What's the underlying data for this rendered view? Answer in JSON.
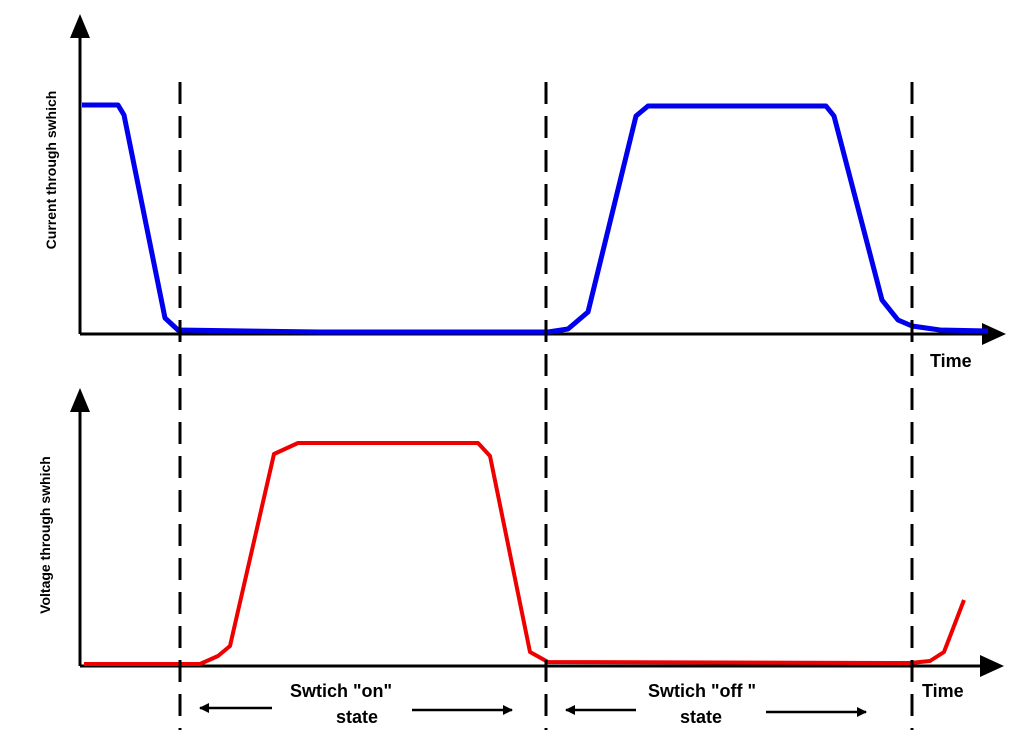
{
  "top_panel": {
    "y_axis_label": "Current through swhich",
    "x_axis_label": "Time",
    "trace_color": "#0000ee",
    "trace_levels": {
      "start": "high",
      "after_first_boundary": "low",
      "between_2nd_and_3rd_boundary": "high"
    }
  },
  "bottom_panel": {
    "y_axis_label": "Voltage through swhich",
    "x_axis_label": "Time",
    "trace_color": "#ee0000",
    "trace_levels": {
      "start": "low",
      "between_1st_and_2nd_boundary": "high",
      "after_2nd_boundary": "low",
      "end": "rising"
    }
  },
  "state_labels": {
    "on": {
      "line1": "Swtich \"on\"",
      "line2": "state"
    },
    "off": {
      "line1": "Swtich \"off \"",
      "line2": "state"
    }
  },
  "colors": {
    "axes": "#000000",
    "boundary_lines": "#000000"
  }
}
